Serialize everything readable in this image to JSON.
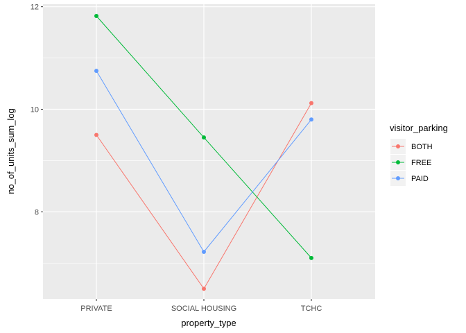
{
  "chart_data": {
    "type": "line",
    "title": "",
    "xlabel": "property_type",
    "ylabel": "no_of_units_sum_log",
    "categories": [
      "PRIVATE",
      "SOCIAL HOUSING",
      "TCHC"
    ],
    "ylim": [
      6.3,
      12.05
    ],
    "yticks": [
      8,
      10,
      12
    ],
    "y_minor_ticks": [
      7,
      9,
      11
    ],
    "grid": true,
    "background": "#ebebeb",
    "legend": {
      "title": "visitor_parking",
      "position": "right"
    },
    "series": [
      {
        "name": "BOTH",
        "color": "#f8766d",
        "values": [
          9.5,
          6.5,
          10.12
        ]
      },
      {
        "name": "FREE",
        "color": "#00ba38",
        "values": [
          11.82,
          9.45,
          7.1
        ]
      },
      {
        "name": "PAID",
        "color": "#619cff",
        "values": [
          10.75,
          7.22,
          9.8
        ]
      }
    ]
  }
}
